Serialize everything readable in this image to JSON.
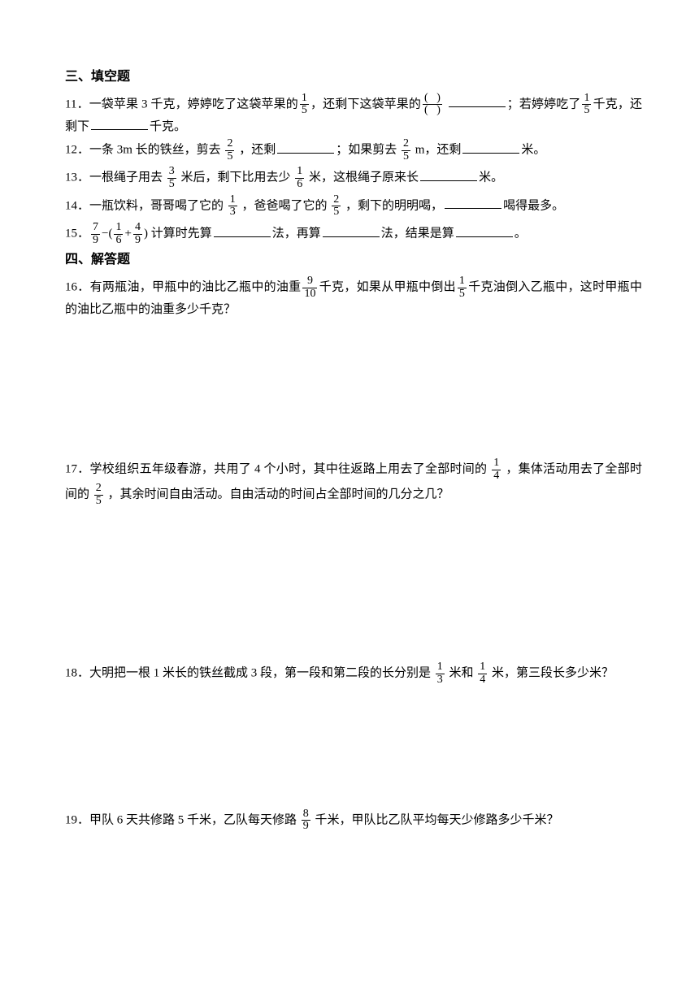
{
  "section3": {
    "heading": "三、填空题"
  },
  "q11": {
    "num": "11．",
    "t1": "一袋苹果 3 千克，婷婷吃了这袋苹果的",
    "f1n": "1",
    "f1d": "5",
    "t2": "，还剩下这袋苹果的",
    "t3": "；若婷婷吃了",
    "f2n": "1",
    "f2d": "5",
    "t4": "千克，还剩下",
    "t5": "千克。"
  },
  "q12": {
    "num": "12．",
    "t1": "一条 3m 长的铁丝，剪去",
    "f1n": "2",
    "f1d": "5",
    "t2": "，还剩",
    "t3": "；如果剪去",
    "f2n": "2",
    "f2d": "5",
    "t4": " m，还剩",
    "t5": "米。"
  },
  "q13": {
    "num": "13．",
    "t1": "一根绳子用去",
    "f1n": "3",
    "f1d": "5",
    "t2": " 米后，剩下比用去少",
    "f2n": "1",
    "f2d": "6",
    "t3": " 米，这根绳子原来长",
    "t4": "米。"
  },
  "q14": {
    "num": "14．",
    "t1": "一瓶饮料，哥哥喝了它的",
    "f1n": "1",
    "f1d": "3",
    "t2": "，爸爸喝了它的",
    "f2n": "2",
    "f2d": "5",
    "t3": "，剩下的明明喝，",
    "t4": "喝得最多。"
  },
  "q15": {
    "num": "15．",
    "f1n": "7",
    "f1d": "9",
    "dash": "−(",
    "f2n": "1",
    "f2d": "6",
    "plus": "+",
    "f3n": "4",
    "f3d": "9",
    "close": ")",
    "t1": " 计算时先算",
    "t2": "法，再算",
    "t3": "法，结果是算",
    "t4": "。"
  },
  "section4": {
    "heading": "四、解答题"
  },
  "q16": {
    "num": "16．",
    "t1": "有两瓶油，甲瓶中的油比乙瓶中的油重",
    "f1n": "9",
    "f1d": "10",
    "t2": "千克，如果从甲瓶中倒出",
    "f2n": "1",
    "f2d": "5",
    "t3": "千克油倒入乙瓶中，这时甲瓶中的油比乙瓶中的油重多少千克？"
  },
  "q17": {
    "num": "17．",
    "t1": "学校组织五年级春游，共用了 4 个小时，其中往返路上用去了全部时间的",
    "f1n": "1",
    "f1d": "4",
    "t2": "，集体活动用去了全部时间的",
    "f2n": "2",
    "f2d": "5",
    "t3": "，其余时间自由活动。自由活动的时间占全部时间的几分之几？"
  },
  "q18": {
    "num": "18．",
    "t1": "大明把一根 1 米长的铁丝截成 3 段，第一段和第二段的长分别是",
    "f1n": "1",
    "f1d": "3",
    "t2": " 米和",
    "f2n": "1",
    "f2d": "4",
    "t3": " 米，第三段长多少米？"
  },
  "q19": {
    "num": "19．",
    "t1": "甲队 6 天共修路 5 千米，乙队每天修路",
    "f1n": "8",
    "f1d": "9",
    "t2": " 千米，甲队比乙队平均每天少修路多少千米？"
  }
}
